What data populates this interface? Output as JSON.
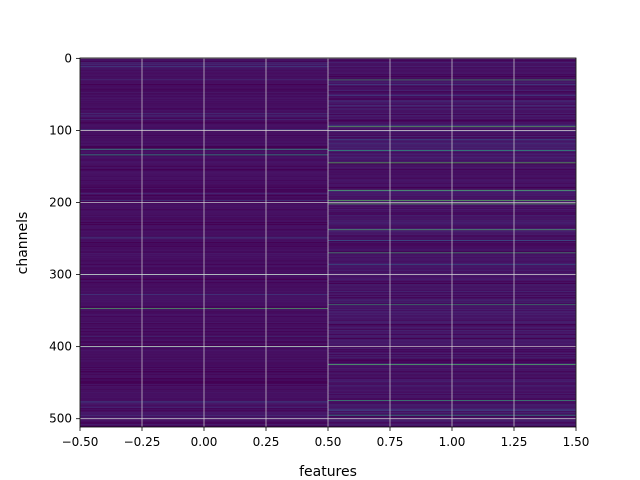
{
  "chart_data": {
    "type": "heatmap",
    "title": "",
    "xlabel": "features",
    "ylabel": "channels",
    "xlim": [
      -0.5,
      1.5
    ],
    "ylim": [
      511.5,
      -0.5
    ],
    "y_inverted": true,
    "grid": true,
    "colormap": "viridis",
    "columns": [
      0,
      1
    ],
    "rows": 512,
    "x_tick_labels": [
      "−0.50",
      "−0.25",
      "0.00",
      "0.25",
      "0.50",
      "0.75",
      "1.00",
      "1.25",
      "1.50"
    ],
    "x_ticks": [
      -0.5,
      -0.25,
      0.0,
      0.25,
      0.5,
      0.75,
      1.0,
      1.25,
      1.5
    ],
    "y_tick_labels": [
      "0",
      "100",
      "200",
      "300",
      "400",
      "500"
    ],
    "y_ticks": [
      0,
      100,
      200,
      300,
      400,
      500
    ],
    "column_profiles": [
      {
        "feature": 0,
        "base_level": 0.08,
        "noise": 0.1,
        "bright_channels": [
          126,
          134,
          300,
          347,
          400
        ]
      },
      {
        "feature": 1,
        "base_level": 0.06,
        "noise": 0.22,
        "bright_channels": [
          30,
          95,
          128,
          145,
          183,
          197,
          202,
          238,
          270,
          342,
          425,
          475,
          495
        ]
      }
    ],
    "colors": {
      "background": "#440154",
      "low": "#481a6c",
      "mid": "#3b528b",
      "high": "#21918c",
      "peak": "#5ec962",
      "grid": "#d8d8d8"
    }
  }
}
